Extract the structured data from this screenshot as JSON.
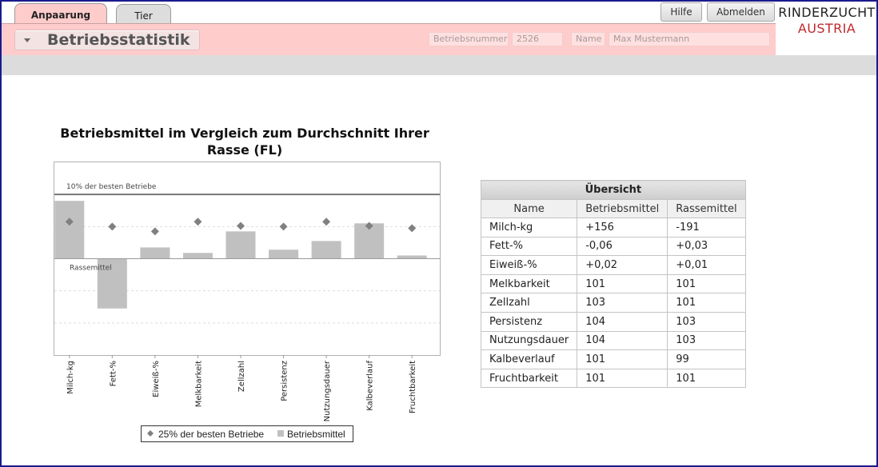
{
  "tabs": [
    {
      "label": "Anpaarung",
      "active": true
    },
    {
      "label": "Tier",
      "active": false
    }
  ],
  "section": {
    "title": "Betriebsstatistik"
  },
  "fields": {
    "betriebsnummer_label": "Betriebsnummer",
    "betriebsnummer_value": "2526",
    "name_label": "Name",
    "name_value": "Max Mustermann"
  },
  "buttons": {
    "hilfe": "Hilfe",
    "abmelden": "Abmelden"
  },
  "logo": {
    "line1": "RINDERZUCHT",
    "line2": "AUSTRIA"
  },
  "colors": {
    "tab_pink": "#ffcccc",
    "brand_red": "#c0282d",
    "bar": "#c0c0c0",
    "marker": "#808080"
  },
  "chart_data": {
    "type": "bar",
    "title": "Betriebsmittel im Vergleich zum Durchschnitt Ihrer Rasse (FL)",
    "categories": [
      "Milch-kg",
      "Fett-%",
      "Eiweiß-%",
      "Melkbarkeit",
      "Zellzahl",
      "Persistenz",
      "Nutzungsdauer",
      "Kalbeverlauf",
      "Fruchtbarkeit"
    ],
    "series": [
      {
        "name": "Betriebsmittel",
        "kind": "bar",
        "values": [
          1.8,
          -1.55,
          0.35,
          0.18,
          0.85,
          0.28,
          0.55,
          1.1,
          0.1
        ]
      },
      {
        "name": "25% der besten Betriebe",
        "kind": "marker",
        "values": [
          1.15,
          1.0,
          0.85,
          1.15,
          1.02,
          1.0,
          1.15,
          1.02,
          0.95
        ]
      }
    ],
    "reference_lines": [
      {
        "label": "10% der besten Betriebe",
        "value": 2.0
      },
      {
        "label": "Rassemittel",
        "value": 0
      }
    ],
    "ylim": [
      -3,
      3
    ],
    "grid": true,
    "legend": "bottom"
  },
  "overview": {
    "caption": "Übersicht",
    "headers": [
      "Name",
      "Betriebsmittel",
      "Rassemittel"
    ],
    "rows": [
      [
        "Milch-kg",
        "+156",
        "-191"
      ],
      [
        "Fett-%",
        "-0,06",
        "+0,03"
      ],
      [
        "Eiweiß-%",
        "+0,02",
        "+0,01"
      ],
      [
        "Melkbarkeit",
        "101",
        "101"
      ],
      [
        "Zellzahl",
        "103",
        "101"
      ],
      [
        "Persistenz",
        "104",
        "103"
      ],
      [
        "Nutzungsdauer",
        "104",
        "103"
      ],
      [
        "Kalbeverlauf",
        "101",
        "99"
      ],
      [
        "Fruchtbarkeit",
        "101",
        "101"
      ]
    ]
  }
}
